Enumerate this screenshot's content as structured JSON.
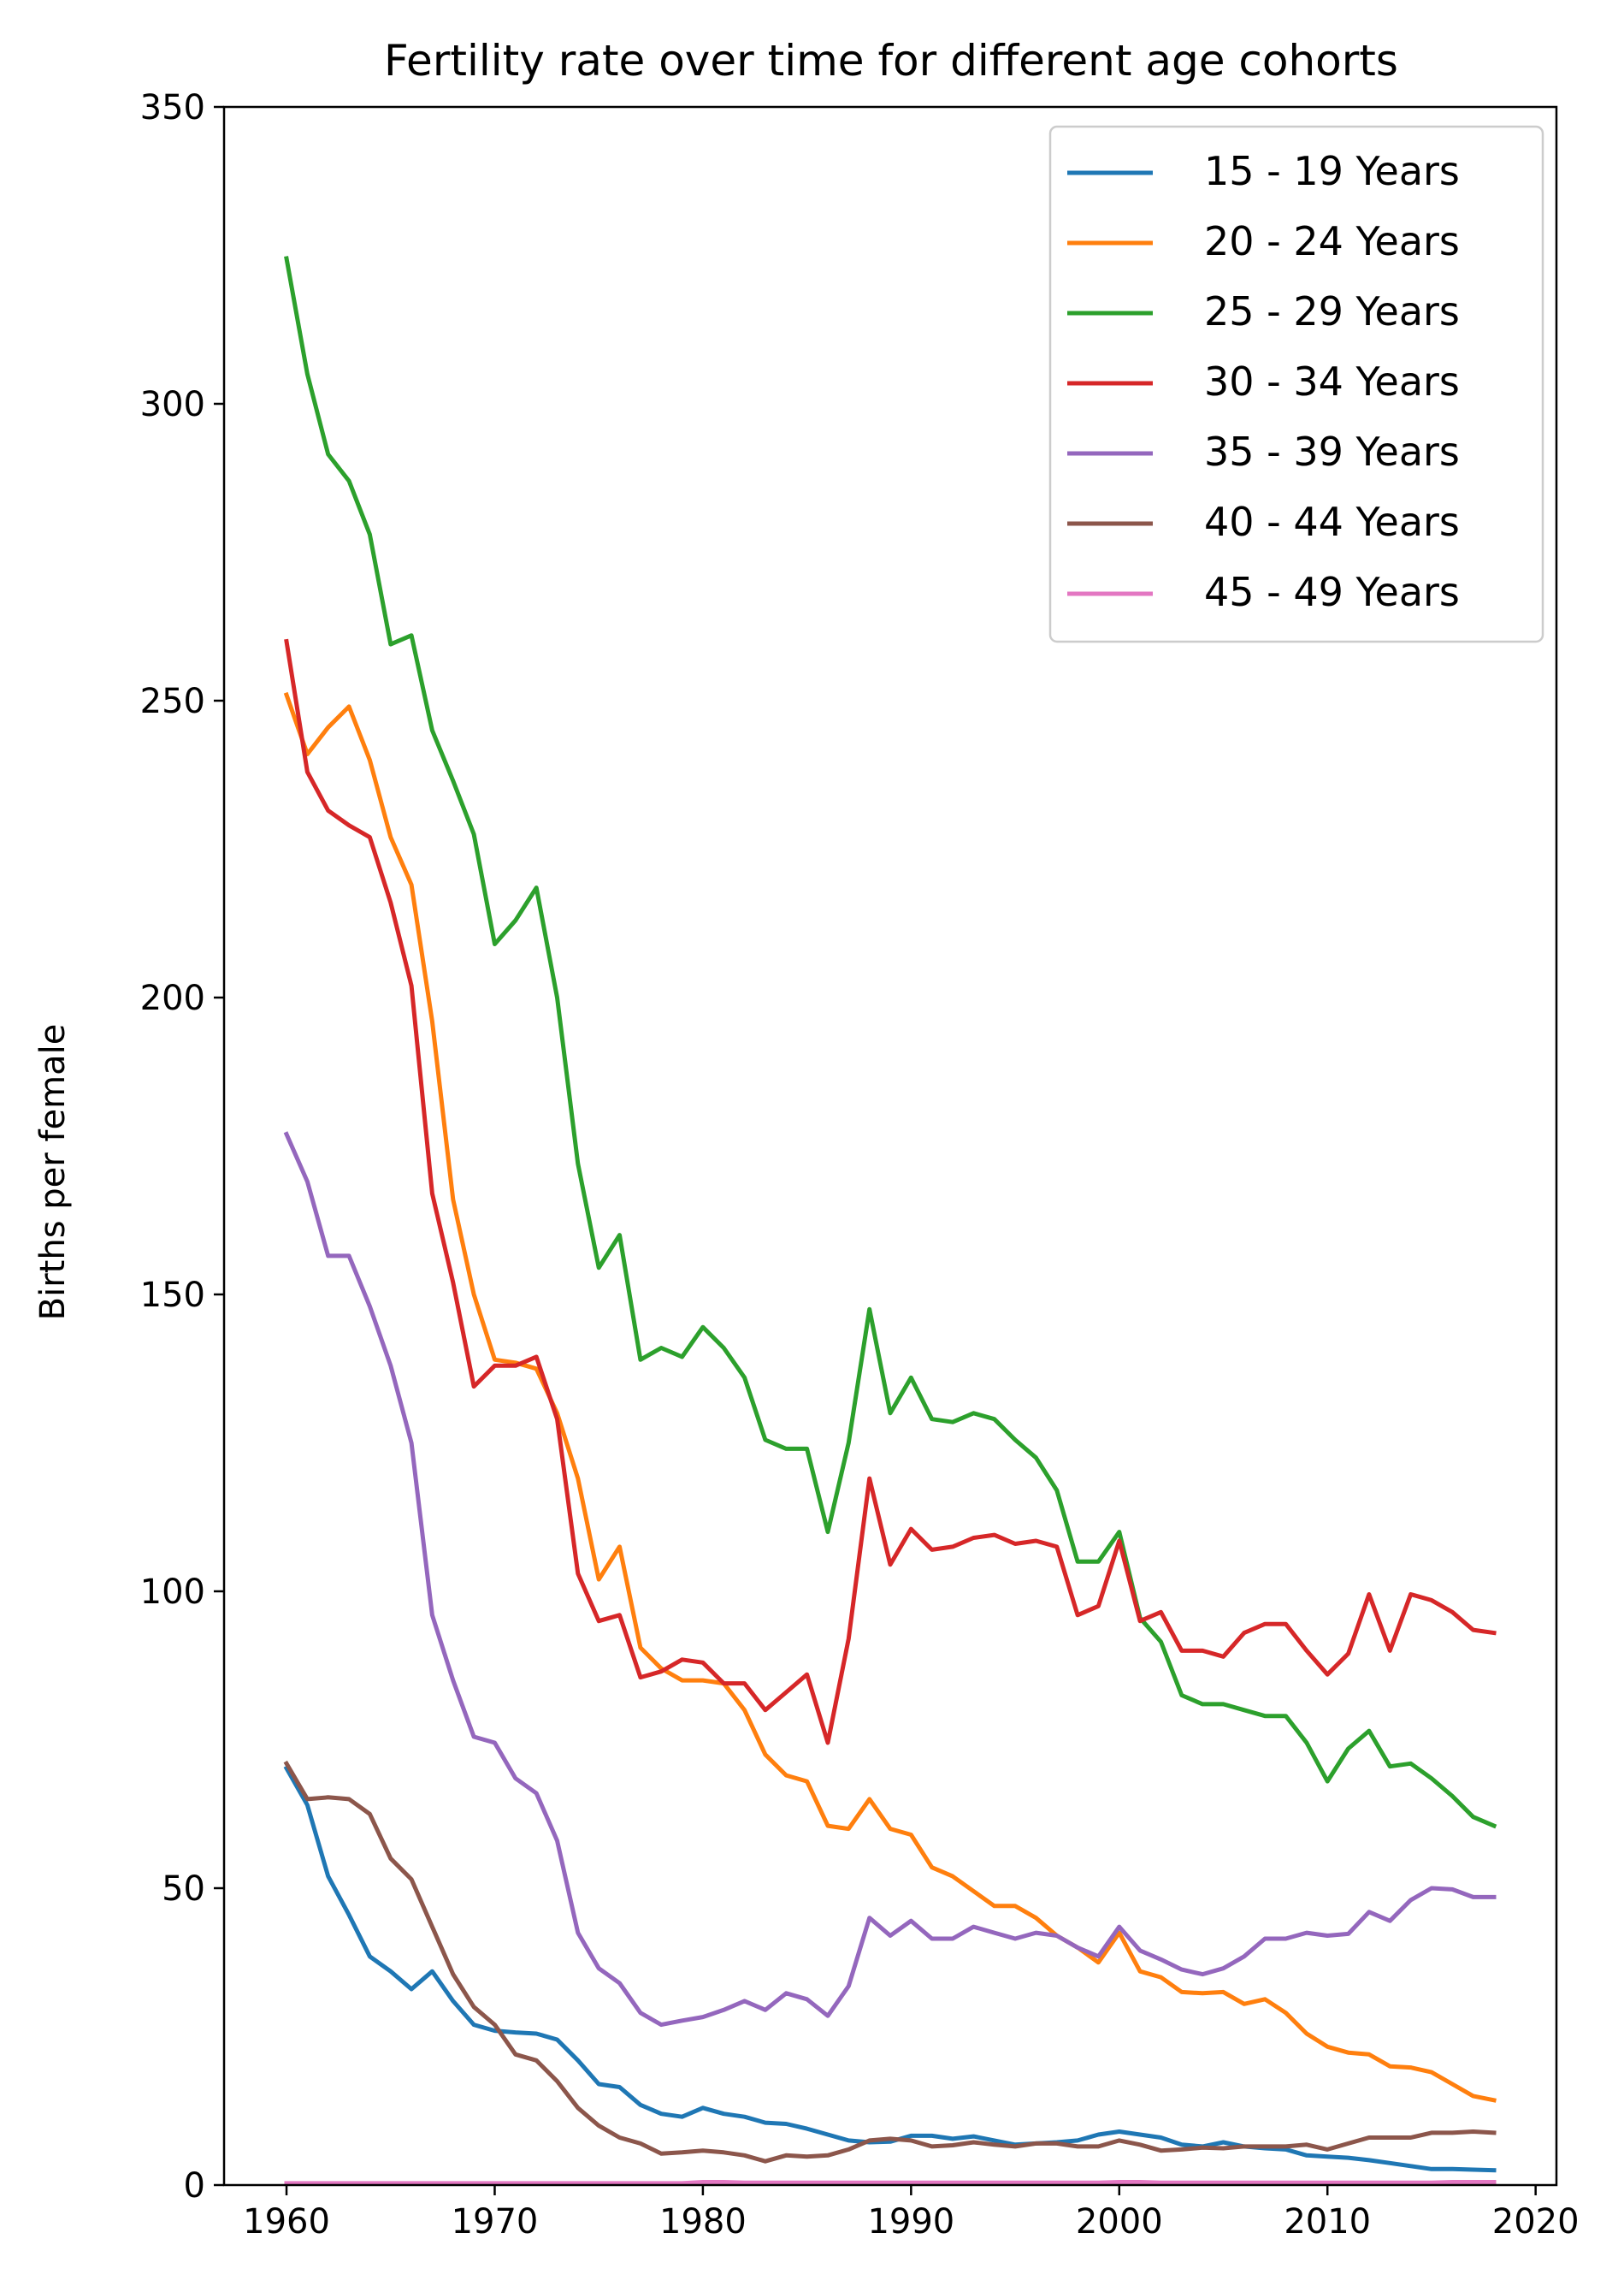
{
  "chart_data": {
    "type": "line",
    "title": "Fertility rate over time for different age cohorts",
    "xlabel": "",
    "ylabel": "Births per female",
    "xlim": [
      1957,
      2021
    ],
    "ylim": [
      0,
      350
    ],
    "xticks": [
      1960,
      1970,
      1980,
      1990,
      2000,
      2010,
      2020
    ],
    "yticks": [
      0,
      50,
      100,
      150,
      200,
      250,
      300,
      350
    ],
    "grid": false,
    "legend_position": "top-right",
    "x": [
      1960,
      1961,
      1962,
      1963,
      1964,
      1965,
      1966,
      1967,
      1968,
      1969,
      1970,
      1971,
      1972,
      1973,
      1974,
      1975,
      1976,
      1977,
      1978,
      1979,
      1980,
      1981,
      1982,
      1983,
      1984,
      1985,
      1986,
      1987,
      1988,
      1989,
      1990,
      1991,
      1992,
      1993,
      1994,
      1995,
      1996,
      1997,
      1998,
      1999,
      2000,
      2001,
      2002,
      2003,
      2004,
      2005,
      2006,
      2007,
      2008,
      2009,
      2010,
      2011,
      2012,
      2013,
      2014,
      2015,
      2016,
      2017,
      2018
    ],
    "series": [
      {
        "name": "15 - 19 Years",
        "color": "#1f77b4",
        "values": [
          70.2,
          64.0,
          52.0,
          45.5,
          38.5,
          36.0,
          33.0,
          36.0,
          31.0,
          27.0,
          26.0,
          25.7,
          25.5,
          24.5,
          21.0,
          17.0,
          16.5,
          13.5,
          12.0,
          11.5,
          13.0,
          12.0,
          11.5,
          10.5,
          10.3,
          9.5,
          8.5,
          7.5,
          7.2,
          7.3,
          8.3,
          8.3,
          7.8,
          8.2,
          7.5,
          6.8,
          7.0,
          7.2,
          7.5,
          8.5,
          9.0,
          8.5,
          8.0,
          6.8,
          6.5,
          7.2,
          6.5,
          6.2,
          6.0,
          5.0,
          4.8,
          4.6,
          4.2,
          3.7,
          3.2,
          2.7,
          2.7,
          2.6,
          2.5
        ]
      },
      {
        "name": "20 - 24 Years",
        "color": "#ff7f0e",
        "values": [
          251.0,
          241.0,
          245.5,
          249.0,
          240.0,
          227.0,
          219.0,
          196.0,
          166.0,
          150.0,
          139.0,
          138.5,
          137.5,
          130.0,
          119.0,
          102.0,
          107.5,
          90.5,
          87.0,
          85.0,
          85.0,
          84.5,
          80.0,
          72.5,
          69.0,
          68.0,
          60.5,
          60.0,
          65.0,
          60.0,
          59.0,
          53.5,
          52.0,
          49.5,
          47.0,
          47.0,
          45.0,
          42.0,
          40.0,
          37.5,
          42.5,
          36.0,
          35.0,
          32.5,
          32.3,
          32.5,
          30.5,
          31.3,
          29.0,
          25.5,
          23.3,
          22.3,
          22.0,
          20.0,
          19.8,
          19.0,
          17.0,
          15.0,
          14.3
        ]
      },
      {
        "name": "25 - 29 Years",
        "color": "#2ca02c",
        "values": [
          324.5,
          305.0,
          291.5,
          287.0,
          278.0,
          259.5,
          261.0,
          245.0,
          236.5,
          227.5,
          209.0,
          213.0,
          218.5,
          200.0,
          172.0,
          154.5,
          160.0,
          139.0,
          141.0,
          139.5,
          144.5,
          141.0,
          136.0,
          125.5,
          124.0,
          124.0,
          110.0,
          125.0,
          147.5,
          130.0,
          136.0,
          129.0,
          128.5,
          130.0,
          129.0,
          125.5,
          122.5,
          117.0,
          105.0,
          105.0,
          110.0,
          95.5,
          91.5,
          82.5,
          81.0,
          81.0,
          80.0,
          79.0,
          79.0,
          74.5,
          68.0,
          73.5,
          76.5,
          70.5,
          71.0,
          68.5,
          65.5,
          62.0,
          60.5
        ]
      },
      {
        "name": "30 - 34 Years",
        "color": "#d62728",
        "values": [
          260.0,
          238.0,
          231.5,
          229.0,
          227.0,
          216.0,
          202.0,
          167.0,
          152.0,
          134.5,
          138.0,
          138.0,
          139.5,
          129.0,
          103.0,
          95.0,
          96.0,
          85.5,
          86.5,
          88.5,
          88.0,
          84.5,
          84.5,
          80.0,
          83.0,
          86.0,
          74.5,
          92.0,
          119.0,
          104.5,
          110.5,
          107.0,
          107.5,
          109.0,
          109.5,
          108.0,
          108.5,
          107.5,
          96.0,
          97.5,
          108.5,
          95.0,
          96.5,
          90.0,
          90.0,
          89.0,
          93.0,
          94.5,
          94.5,
          90.0,
          86.0,
          89.5,
          99.5,
          90.0,
          99.5,
          98.5,
          96.5,
          93.5,
          93.0
        ]
      },
      {
        "name": "35 - 39 Years",
        "color": "#9467bd",
        "values": [
          177.0,
          169.0,
          156.5,
          156.5,
          148.0,
          138.0,
          125.0,
          96.0,
          85.0,
          75.5,
          74.5,
          68.5,
          66.0,
          58.0,
          42.5,
          36.5,
          34.0,
          29.0,
          27.0,
          27.7,
          28.3,
          29.5,
          31.0,
          29.5,
          32.3,
          31.3,
          28.5,
          33.5,
          45.0,
          42.0,
          44.5,
          41.5,
          41.5,
          43.5,
          42.5,
          41.5,
          42.5,
          42.0,
          40.0,
          38.5,
          43.5,
          39.5,
          38.0,
          36.3,
          35.5,
          36.5,
          38.5,
          41.5,
          41.5,
          42.5,
          42.0,
          42.3,
          46.0,
          44.5,
          48.0,
          50.0,
          49.8,
          48.5,
          48.5
        ]
      },
      {
        "name": "40 - 44 Years",
        "color": "#8c564b",
        "values": [
          71.0,
          65.0,
          65.3,
          65.0,
          62.5,
          55.0,
          51.5,
          43.5,
          35.5,
          30.0,
          27.0,
          22.0,
          21.0,
          17.5,
          13.0,
          10.0,
          8.0,
          7.0,
          5.3,
          5.5,
          5.8,
          5.5,
          5.0,
          4.0,
          5.0,
          4.8,
          5.0,
          6.0,
          7.5,
          7.8,
          7.5,
          6.5,
          6.7,
          7.2,
          6.8,
          6.5,
          7.0,
          7.0,
          6.5,
          6.5,
          7.5,
          6.8,
          5.8,
          6.0,
          6.3,
          6.2,
          6.5,
          6.5,
          6.5,
          6.8,
          6.0,
          7.0,
          8.0,
          8.0,
          8.0,
          8.8,
          8.8,
          9.0,
          8.8
        ]
      },
      {
        "name": "45 - 49 Years",
        "color": "#e377c2",
        "values": [
          0.3,
          0.3,
          0.3,
          0.3,
          0.3,
          0.3,
          0.3,
          0.3,
          0.3,
          0.3,
          0.3,
          0.3,
          0.3,
          0.3,
          0.3,
          0.3,
          0.3,
          0.3,
          0.3,
          0.3,
          0.5,
          0.5,
          0.4,
          0.4,
          0.4,
          0.4,
          0.4,
          0.4,
          0.4,
          0.4,
          0.4,
          0.4,
          0.4,
          0.4,
          0.4,
          0.4,
          0.4,
          0.4,
          0.4,
          0.4,
          0.5,
          0.5,
          0.4,
          0.4,
          0.4,
          0.4,
          0.4,
          0.4,
          0.4,
          0.4,
          0.4,
          0.4,
          0.4,
          0.4,
          0.4,
          0.4,
          0.5,
          0.5,
          0.5
        ]
      }
    ]
  }
}
